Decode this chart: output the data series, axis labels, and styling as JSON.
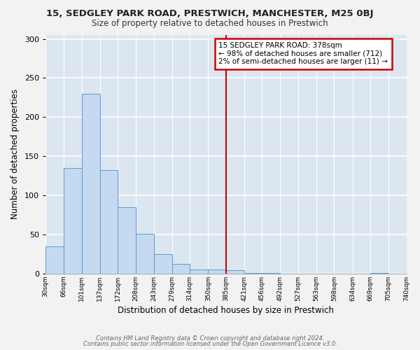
{
  "title": "15, SEDGLEY PARK ROAD, PRESTWICH, MANCHESTER, M25 0BJ",
  "subtitle": "Size of property relative to detached houses in Prestwich",
  "xlabel": "Distribution of detached houses by size in Prestwich",
  "ylabel": "Number of detached properties",
  "bar_color": "#c5d9f1",
  "bar_edge_color": "#5b9bd5",
  "background_color": "#dce6f1",
  "grid_color": "#ffffff",
  "fig_background": "#f2f2f2",
  "bin_edges": [
    30,
    66,
    101,
    137,
    172,
    208,
    243,
    279,
    314,
    350,
    385,
    421,
    456,
    492,
    527,
    563,
    598,
    634,
    669,
    705,
    740
  ],
  "bar_heights": [
    35,
    135,
    230,
    132,
    85,
    51,
    25,
    12,
    5,
    5,
    4,
    1,
    1,
    0,
    0,
    0,
    0,
    0,
    1,
    0
  ],
  "tick_labels": [
    "30sqm",
    "66sqm",
    "101sqm",
    "137sqm",
    "172sqm",
    "208sqm",
    "243sqm",
    "279sqm",
    "314sqm",
    "350sqm",
    "385sqm",
    "421sqm",
    "456sqm",
    "492sqm",
    "527sqm",
    "563sqm",
    "598sqm",
    "634sqm",
    "669sqm",
    "705sqm",
    "740sqm"
  ],
  "vline_x": 385,
  "vline_color": "#cc0000",
  "annotation_line1": "15 SEDGLEY PARK ROAD: 378sqm",
  "annotation_line2": "← 98% of detached houses are smaller (712)",
  "annotation_line3": "2% of semi-detached houses are larger (11) →",
  "annotation_box_edgecolor": "#cc0000",
  "ylim": [
    0,
    305
  ],
  "yticks": [
    0,
    50,
    100,
    150,
    200,
    250,
    300
  ],
  "footer_line1": "Contains HM Land Registry data © Crown copyright and database right 2024.",
  "footer_line2": "Contains public sector information licensed under the Open Government Licence v3.0."
}
